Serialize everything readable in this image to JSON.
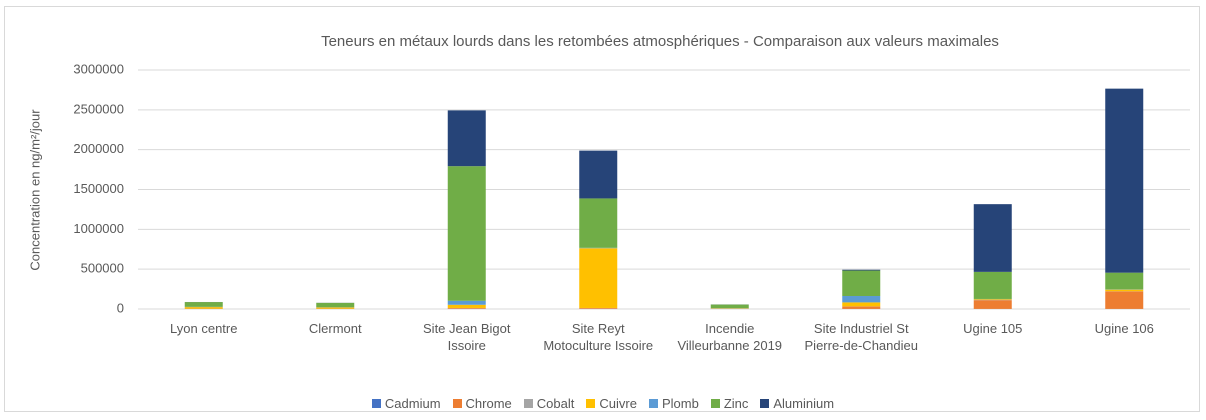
{
  "chart_data": {
    "type": "stacked_bar",
    "title": "Teneurs en métaux lourds dans les retombées atmosphériques - Comparaison aux valeurs maximales",
    "y_label": "Concentration en ng/m²/jour",
    "categories": [
      "Lyon centre",
      "Clermont",
      "Site Jean Bigot Issoire",
      "Site Reyt Motoculture Issoire",
      "Incendie Villeurbanne 2019",
      "Site Industriel St Pierre-de-Chandieu",
      "Ugine 105",
      "Ugine 106"
    ],
    "series": [
      {
        "name": "Cadmium",
        "color": "#4472c4",
        "values": [
          500,
          500,
          1000,
          1000,
          500,
          1000,
          1000,
          1000
        ]
      },
      {
        "name": "Chrome",
        "color": "#ed7d31",
        "values": [
          3000,
          3000,
          10000,
          10000,
          2000,
          30000,
          110000,
          220000
        ]
      },
      {
        "name": "Cobalt",
        "color": "#a5a5a5",
        "values": [
          500,
          500,
          2000,
          2000,
          500,
          2000,
          2000,
          2000
        ]
      },
      {
        "name": "Cuivre",
        "color": "#ffc000",
        "values": [
          20000,
          15000,
          40000,
          750000,
          5000,
          50000,
          10000,
          20000
        ]
      },
      {
        "name": "Plomb",
        "color": "#5b9bd5",
        "values": [
          3000,
          3000,
          50000,
          5000,
          3000,
          80000,
          3000,
          3000
        ]
      },
      {
        "name": "Zinc",
        "color": "#70ad47",
        "values": [
          60000,
          55000,
          1690000,
          620000,
          45000,
          320000,
          340000,
          210000
        ]
      },
      {
        "name": "Aluminium",
        "color": "#264478",
        "values": [
          1000,
          1000,
          700000,
          600000,
          1000,
          10000,
          850000,
          2310000
        ]
      }
    ],
    "ylim": [
      0,
      3000000
    ],
    "yticks": [
      0,
      500000,
      1000000,
      1500000,
      2000000,
      2500000,
      3000000
    ],
    "grid": true,
    "legend": "bottom"
  }
}
